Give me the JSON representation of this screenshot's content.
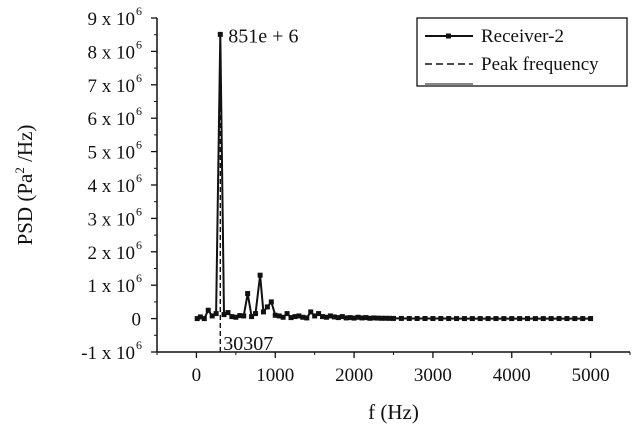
{
  "chart_data": {
    "type": "line",
    "xlabel": "f (Hz)",
    "ylabel_base": "PSD (Pa",
    "ylabel_exp": "2",
    "ylabel_tail": " /Hz)",
    "xlim": [
      -500,
      5500
    ],
    "ylim": [
      -1000000,
      9000000
    ],
    "x_ticks": [
      0,
      1000,
      2000,
      3000,
      4000,
      5000
    ],
    "x_tick_labels": [
      "0",
      "1000",
      "2000",
      "3000",
      "4000",
      "5000"
    ],
    "y_ticks": [
      {
        "value": 9000000,
        "mant": "9 x 10",
        "exp": "6"
      },
      {
        "value": 8000000,
        "mant": "8 x 10",
        "exp": "6"
      },
      {
        "value": 7000000,
        "mant": "7 x 10",
        "exp": "6"
      },
      {
        "value": 6000000,
        "mant": "6 x 10",
        "exp": "6"
      },
      {
        "value": 5000000,
        "mant": "5 x 10",
        "exp": "6"
      },
      {
        "value": 4000000,
        "mant": "4 x 10",
        "exp": "6"
      },
      {
        "value": 3000000,
        "mant": "3 x 10",
        "exp": "6"
      },
      {
        "value": 2000000,
        "mant": "2 x 10",
        "exp": "6"
      },
      {
        "value": 1000000,
        "mant": "1 x 10",
        "exp": "6"
      },
      {
        "value": 0,
        "mant": "0",
        "exp": ""
      },
      {
        "value": -1000000,
        "mant": "-1 x 10",
        "exp": "6"
      }
    ],
    "series": [
      {
        "name": "Receiver-2",
        "style": "solid-square-markers",
        "color": "#111111",
        "x": [
          10,
          50,
          100,
          150,
          200,
          250,
          303,
          350,
          400,
          450,
          500,
          550,
          600,
          650,
          700,
          750,
          808,
          850,
          900,
          950,
          1000,
          1050,
          1100,
          1150,
          1200,
          1250,
          1300,
          1350,
          1400,
          1450,
          1500,
          1550,
          1600,
          1650,
          1700,
          1750,
          1800,
          1850,
          1900,
          1950,
          2000,
          2050,
          2100,
          2150,
          2200,
          2250,
          2300,
          2350,
          2400,
          2450,
          2500,
          2600,
          2700,
          2800,
          2900,
          3000,
          3100,
          3200,
          3300,
          3400,
          3500,
          3600,
          3700,
          3800,
          3900,
          4000,
          4100,
          4200,
          4300,
          4400,
          4500,
          4600,
          4700,
          4800,
          4900,
          5000
        ],
        "y": [
          0,
          50000,
          0,
          250000,
          80000,
          150000,
          8510000,
          120000,
          180000,
          60000,
          40000,
          90000,
          80000,
          750000,
          60000,
          150000,
          1300000,
          200000,
          350000,
          500000,
          100000,
          80000,
          40000,
          150000,
          30000,
          60000,
          80000,
          40000,
          20000,
          200000,
          80000,
          150000,
          60000,
          40000,
          80000,
          50000,
          30000,
          60000,
          20000,
          30000,
          15000,
          40000,
          20000,
          30000,
          10000,
          20000,
          15000,
          10000,
          10000,
          8000,
          5000,
          5000,
          4000,
          3000,
          3000,
          2000,
          2000,
          2000,
          1000,
          1000,
          1000,
          1000,
          1000,
          1000,
          1000,
          1000,
          1000,
          1000,
          1000,
          1000,
          1000,
          1000,
          1000,
          1000,
          1000,
          1000
        ]
      },
      {
        "name": "Peak frequency",
        "style": "dashed",
        "color": "#111111",
        "x": [
          303,
          303
        ],
        "y": [
          -1000000,
          8510000
        ]
      }
    ],
    "annotations": [
      {
        "text": "851e + 6",
        "x": 303,
        "y": 8510000,
        "anchor": "right-of-peak"
      },
      {
        "text": "30307",
        "x": 303,
        "y": -700000,
        "anchor": "below-axis"
      }
    ],
    "legend": {
      "position": "top-right"
    }
  }
}
